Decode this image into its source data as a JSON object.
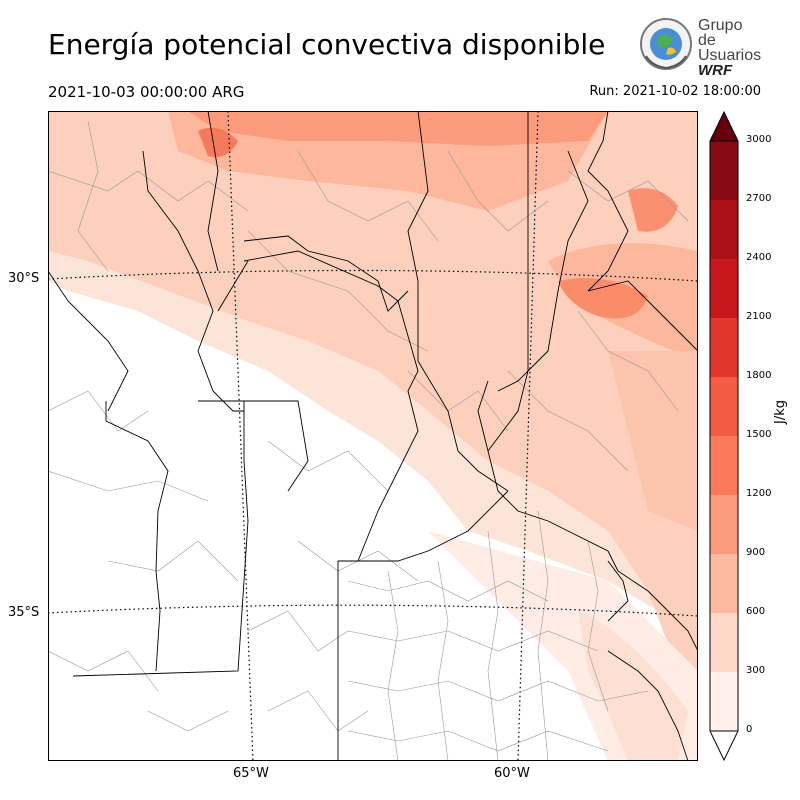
{
  "header": {
    "title": "Energía potencial convectiva disponible",
    "valid_time": "2021-10-03 00:00:00 ARG",
    "run": "Run: 2021-10-02 18:00:00"
  },
  "logo": {
    "line1": "Grupo de",
    "line2": "Usuarios",
    "line3": "WRF",
    "icon": "globe-seal-icon"
  },
  "map": {
    "lat_labels": [
      "30°S",
      "35°S"
    ],
    "lon_labels": [
      "65°W",
      "60°W"
    ],
    "field": "CAPE",
    "description_colors": {
      "outline": "#000000",
      "department_lines": "#888888",
      "graticule": "#000000"
    }
  },
  "colorbar": {
    "label": "J/kg",
    "levels": [
      0,
      300,
      600,
      900,
      1200,
      1500,
      1800,
      2100,
      2400,
      2700,
      3000
    ],
    "tick_labels": [
      "0",
      "300",
      "600",
      "900",
      "1200",
      "1500",
      "1800",
      "2100",
      "2400",
      "2700",
      "3000"
    ],
    "colors": [
      "#fff0eb",
      "#fdd7c8",
      "#fcbba1",
      "#fc9a7c",
      "#fb7a5b",
      "#f45b43",
      "#e0362c",
      "#c9181d",
      "#ab1016",
      "#870a12"
    ],
    "over_color": "#67000d",
    "extend": "both"
  }
}
